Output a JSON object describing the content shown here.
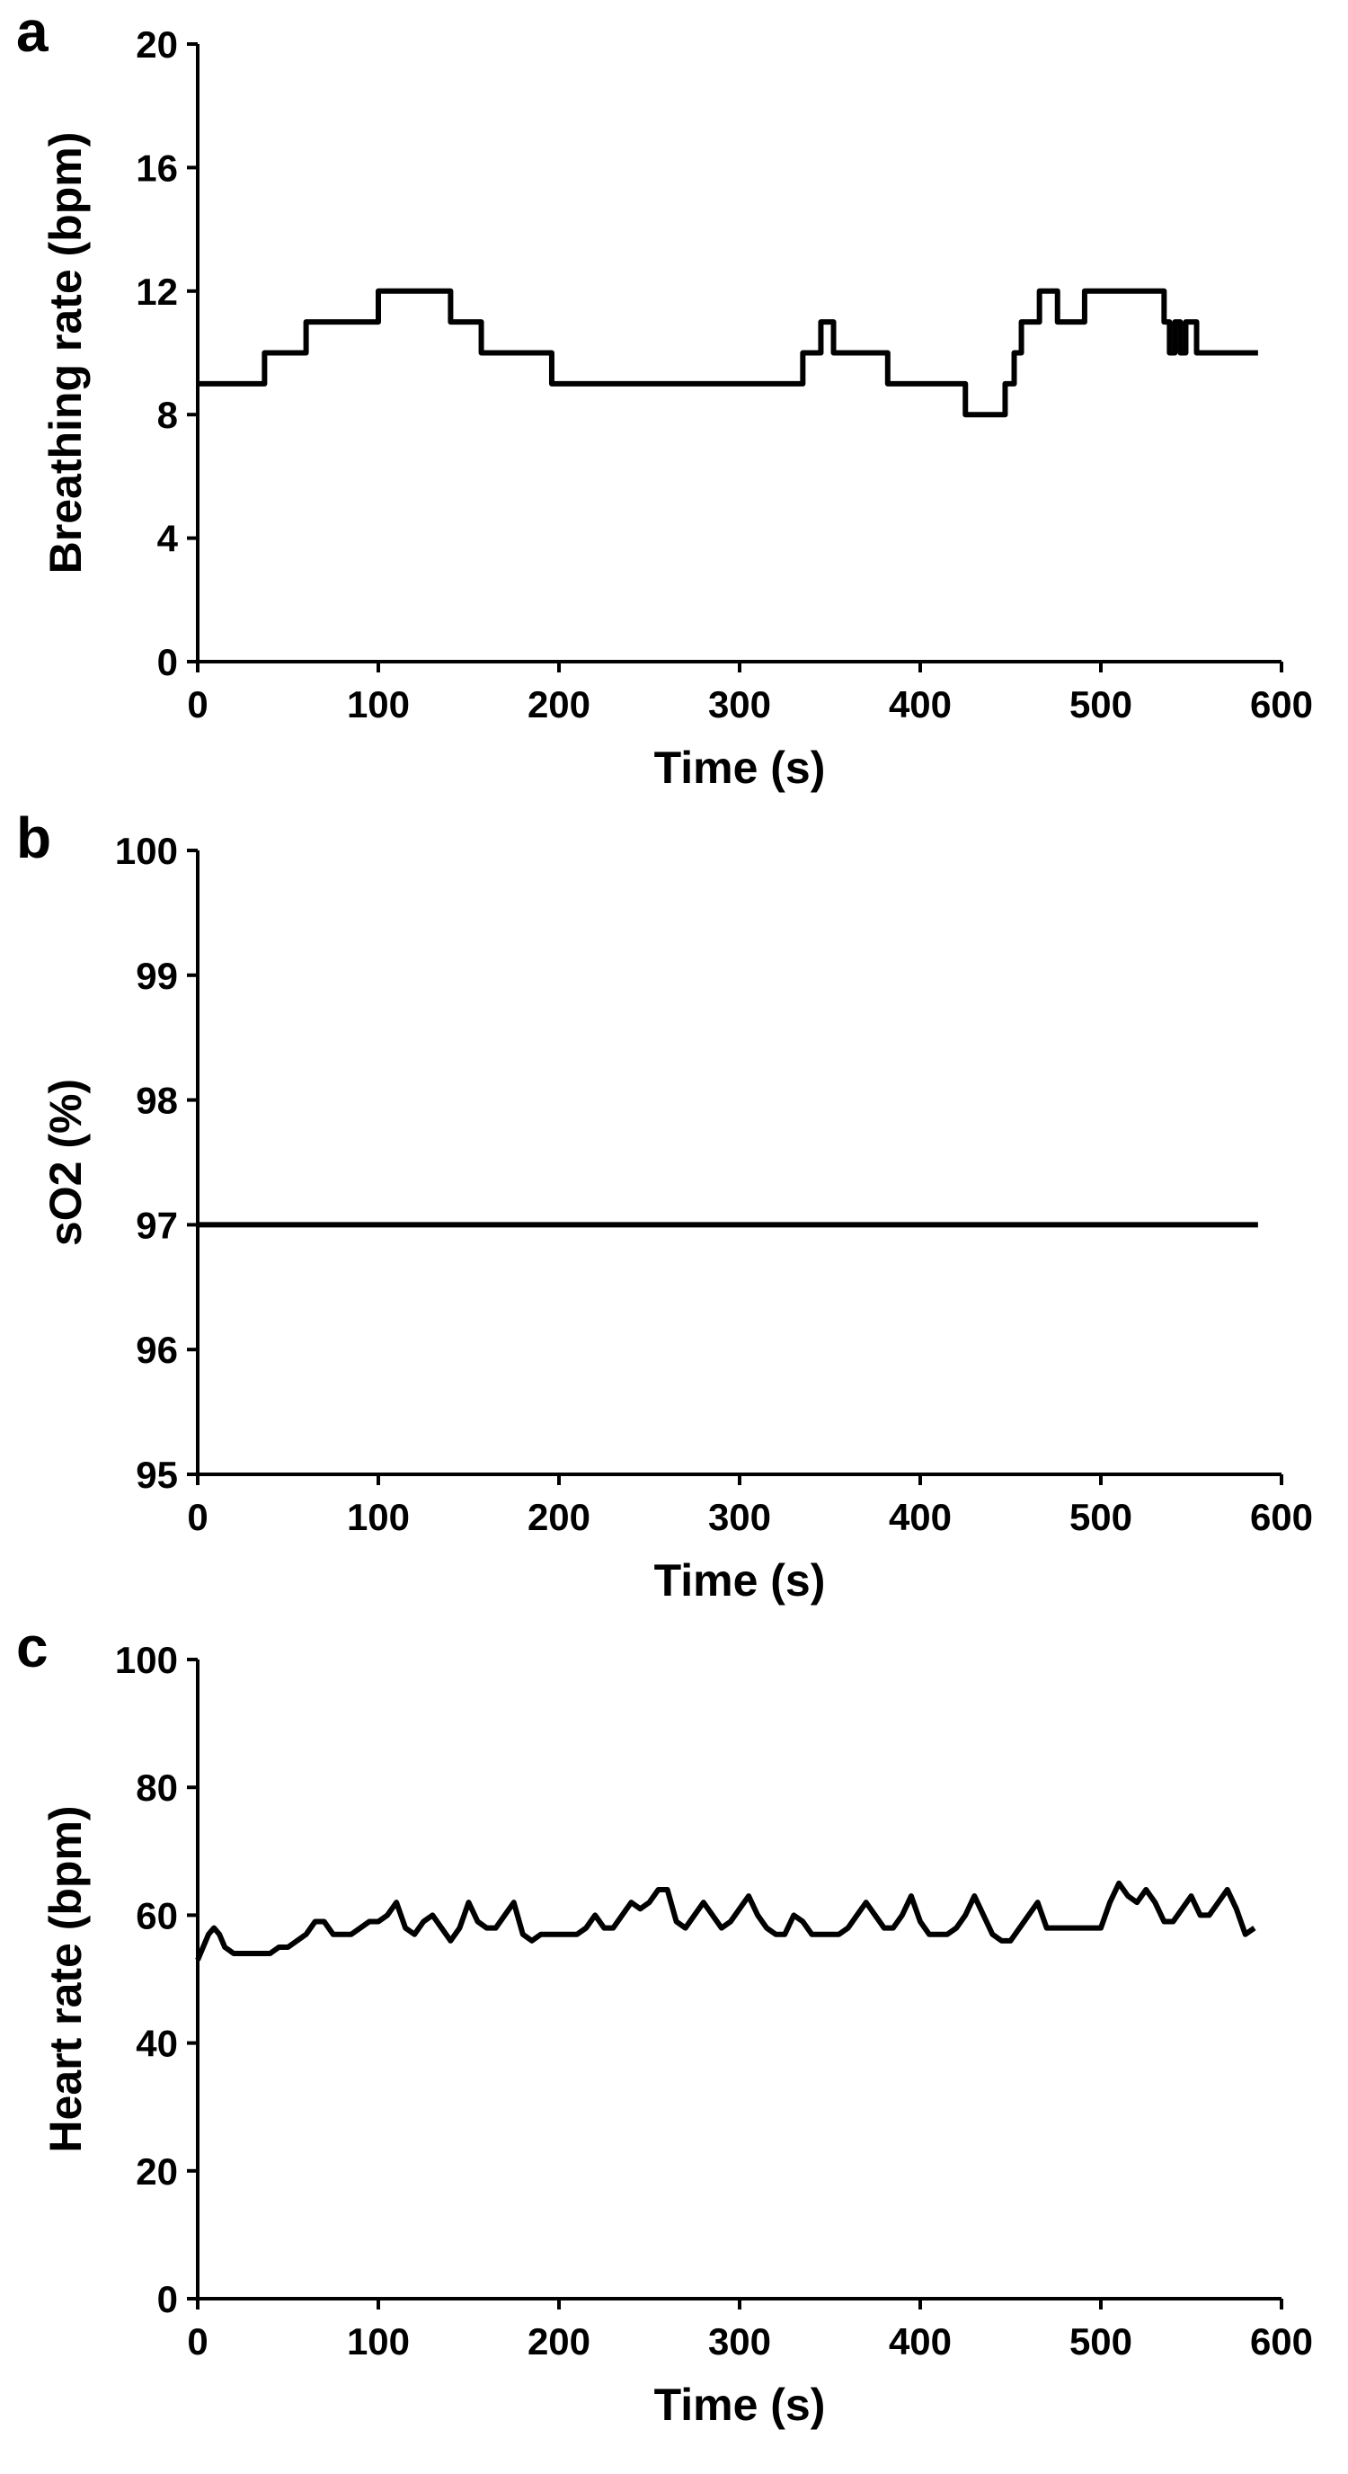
{
  "chart_data": [
    {
      "type": "line",
      "panel_label": "a",
      "x_label": "Time (s)",
      "y_label": "Breathing rate (bpm)",
      "xlim": [
        0,
        600
      ],
      "xticks": [
        0,
        100,
        200,
        300,
        400,
        500,
        600
      ],
      "ylim": [
        0,
        20
      ],
      "yticks": [
        0,
        4,
        8,
        12,
        16,
        20
      ],
      "x": [
        0,
        37,
        37,
        60,
        60,
        100,
        100,
        140,
        140,
        157,
        157,
        196,
        196,
        335,
        335,
        345,
        345,
        352,
        352,
        382,
        382,
        425,
        425,
        447,
        447,
        452,
        452,
        456,
        456,
        466,
        466,
        476,
        476,
        491,
        491,
        535,
        535,
        538,
        538,
        541,
        541,
        544,
        544,
        547,
        547,
        553,
        553,
        587
      ],
      "series": [
        {
          "color": "#000000",
          "values": [
            9,
            9,
            10,
            10,
            11,
            11,
            12,
            12,
            11,
            11,
            10,
            10,
            9,
            9,
            10,
            10,
            11,
            11,
            10,
            10,
            9,
            9,
            8,
            8,
            9,
            9,
            10,
            10,
            11,
            11,
            12,
            12,
            11,
            11,
            12,
            12,
            11,
            11,
            10,
            10,
            11,
            11,
            10,
            10,
            11,
            11,
            10,
            10
          ]
        }
      ]
    },
    {
      "type": "line",
      "panel_label": "b",
      "x_label": "Time (s)",
      "y_label": "sO2 (%)",
      "xlim": [
        0,
        600
      ],
      "xticks": [
        0,
        100,
        200,
        300,
        400,
        500,
        600
      ],
      "ylim": [
        95,
        100
      ],
      "yticks": [
        95,
        96,
        97,
        98,
        99,
        100
      ],
      "x": [
        0,
        587
      ],
      "series": [
        {
          "color": "#000000",
          "values": [
            97,
            97
          ]
        }
      ]
    },
    {
      "type": "line",
      "panel_label": "c",
      "x_label": "Time (s)",
      "y_label": "Heart rate (bpm)",
      "xlim": [
        0,
        600
      ],
      "xticks": [
        0,
        100,
        200,
        300,
        400,
        500,
        600
      ],
      "ylim": [
        0,
        100
      ],
      "yticks": [
        0,
        20,
        40,
        60,
        80,
        100
      ],
      "x": [
        0,
        3,
        6,
        9,
        12,
        15,
        20,
        25,
        30,
        35,
        40,
        45,
        50,
        55,
        60,
        65,
        70,
        75,
        80,
        85,
        90,
        95,
        100,
        105,
        110,
        115,
        120,
        125,
        130,
        135,
        140,
        145,
        150,
        155,
        160,
        165,
        170,
        175,
        180,
        185,
        190,
        195,
        200,
        205,
        210,
        215,
        220,
        225,
        230,
        235,
        240,
        245,
        250,
        255,
        260,
        265,
        270,
        275,
        280,
        285,
        290,
        295,
        300,
        305,
        310,
        315,
        320,
        325,
        330,
        335,
        340,
        345,
        350,
        355,
        360,
        365,
        370,
        375,
        380,
        385,
        390,
        395,
        400,
        405,
        410,
        415,
        420,
        425,
        430,
        435,
        440,
        445,
        450,
        455,
        460,
        465,
        470,
        475,
        480,
        485,
        490,
        495,
        500,
        505,
        510,
        515,
        520,
        525,
        530,
        535,
        540,
        545,
        550,
        555,
        560,
        565,
        570,
        575,
        580,
        585
      ],
      "series": [
        {
          "color": "#000000",
          "values": [
            53,
            55,
            57,
            58,
            57,
            55,
            54,
            54,
            54,
            54,
            54,
            55,
            55,
            56,
            57,
            59,
            59,
            57,
            57,
            57,
            58,
            59,
            59,
            60,
            62,
            58,
            57,
            59,
            60,
            58,
            56,
            58,
            62,
            59,
            58,
            58,
            60,
            62,
            57,
            56,
            57,
            57,
            57,
            57,
            57,
            58,
            60,
            58,
            58,
            60,
            62,
            61,
            62,
            64,
            64,
            59,
            58,
            60,
            62,
            60,
            58,
            59,
            61,
            63,
            60,
            58,
            57,
            57,
            60,
            59,
            57,
            57,
            57,
            57,
            58,
            60,
            62,
            60,
            58,
            58,
            60,
            63,
            59,
            57,
            57,
            57,
            58,
            60,
            63,
            60,
            57,
            56,
            56,
            58,
            60,
            62,
            58,
            58,
            58,
            58,
            58,
            58,
            58,
            62,
            65,
            63,
            62,
            64,
            62,
            59,
            59,
            61,
            63,
            60,
            60,
            62,
            64,
            61,
            57,
            58
          ]
        }
      ]
    }
  ]
}
